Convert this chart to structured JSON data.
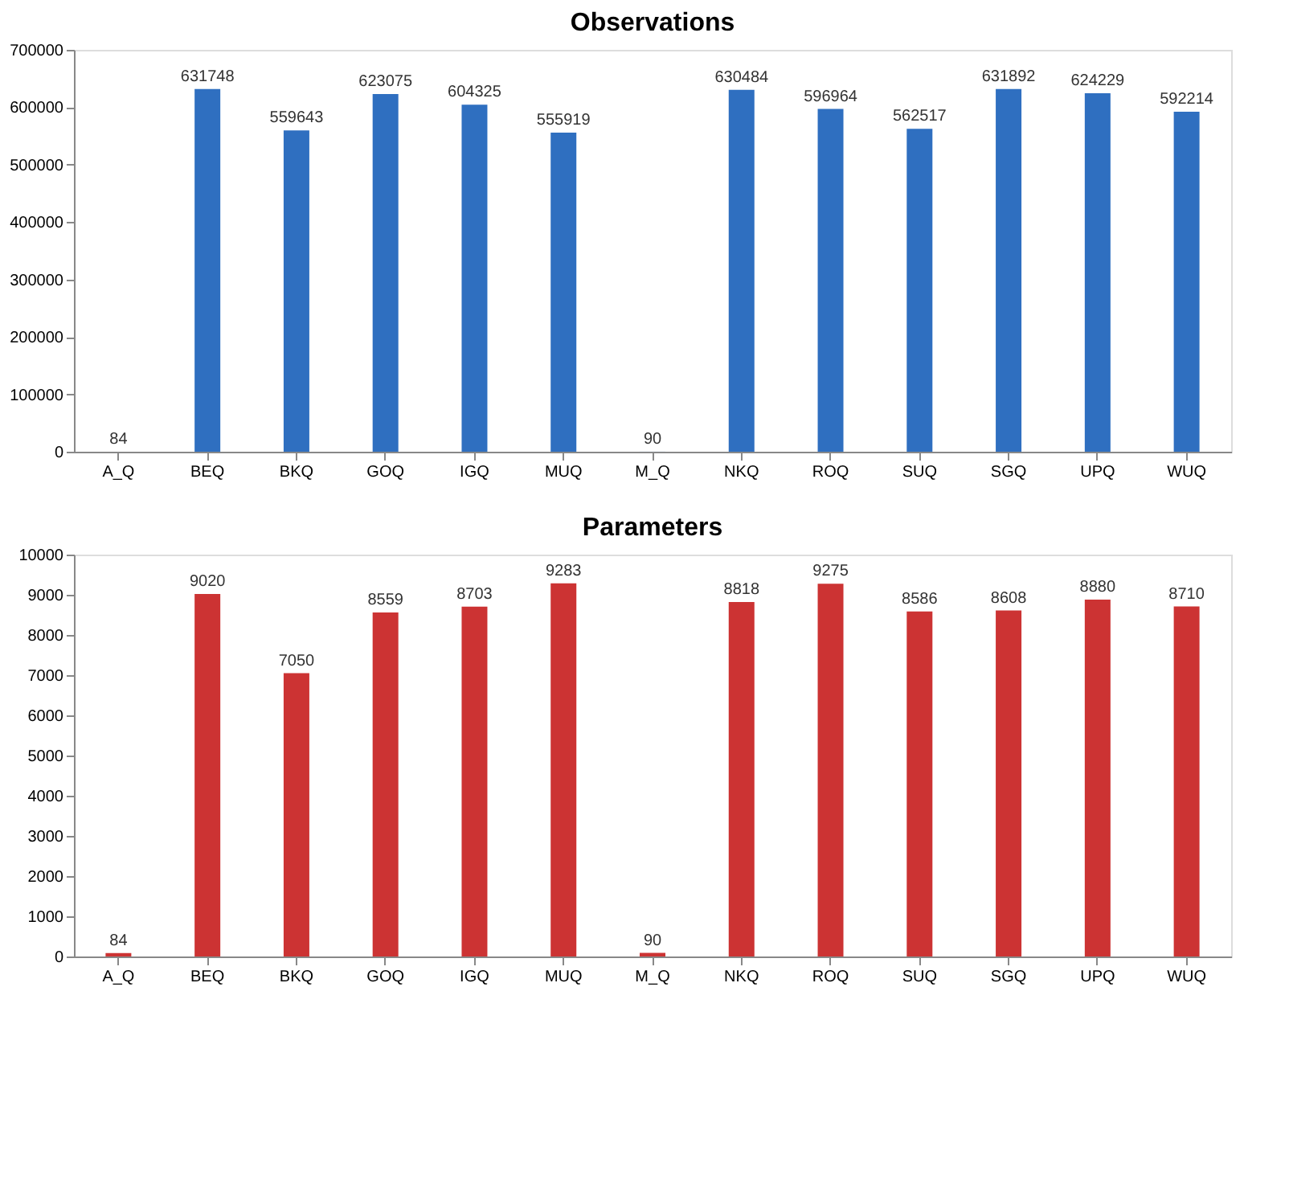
{
  "chart_data": [
    {
      "type": "bar",
      "title": "Observations",
      "categories": [
        "A_Q",
        "BEQ",
        "BKQ",
        "GOQ",
        "IGQ",
        "MUQ",
        "M_Q",
        "NKQ",
        "ROQ",
        "SUQ",
        "SGQ",
        "UPQ",
        "WUQ"
      ],
      "values": [
        84,
        631748,
        559643,
        623075,
        604325,
        555919,
        90,
        630484,
        596964,
        562517,
        631892,
        624229,
        592214
      ],
      "color": "#2f6fc0",
      "ylim": [
        0,
        700000
      ],
      "yticks": [
        0,
        100000,
        200000,
        300000,
        400000,
        500000,
        600000,
        700000
      ],
      "grid": false,
      "data_labels": true
    },
    {
      "type": "bar",
      "title": "Parameters",
      "categories": [
        "A_Q",
        "BEQ",
        "BKQ",
        "GOQ",
        "IGQ",
        "MUQ",
        "M_Q",
        "NKQ",
        "ROQ",
        "SUQ",
        "SGQ",
        "UPQ",
        "WUQ"
      ],
      "values": [
        84,
        9020,
        7050,
        8559,
        8703,
        9283,
        90,
        8818,
        9275,
        8586,
        8608,
        8880,
        8710
      ],
      "color": "#cc3333",
      "ylim": [
        0,
        10000
      ],
      "yticks": [
        0,
        1000,
        2000,
        3000,
        4000,
        5000,
        6000,
        7000,
        8000,
        9000,
        10000
      ],
      "grid": false,
      "data_labels": true
    }
  ]
}
